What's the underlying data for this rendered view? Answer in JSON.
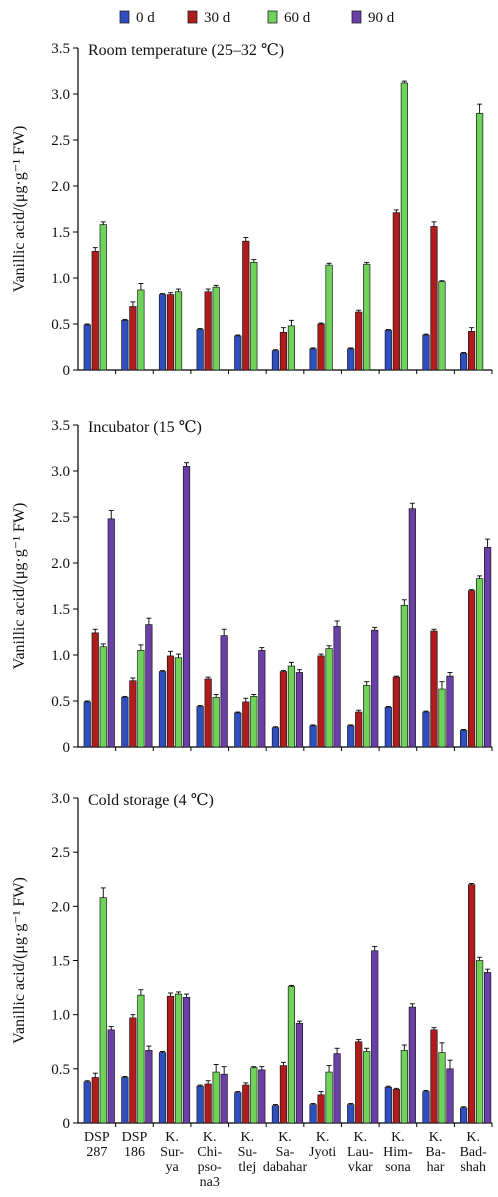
{
  "legend": [
    {
      "label": "0 d",
      "color": "#2f4fc0"
    },
    {
      "label": "30 d",
      "color": "#b01c1c"
    },
    {
      "label": "60 d",
      "color": "#6fd35a"
    },
    {
      "label": "90 d",
      "color": "#6a3fa8"
    }
  ],
  "categories": [
    [
      "DSP",
      "287"
    ],
    [
      "DSP",
      "186"
    ],
    [
      "K.",
      "Sur-",
      "ya"
    ],
    [
      "K.",
      "Chi-",
      "pso-",
      "na3"
    ],
    [
      "K.",
      "Su-",
      "tlej"
    ],
    [
      "K.",
      "Sa-",
      "dabahar"
    ],
    [
      "K.",
      "Jyoti"
    ],
    [
      "K.",
      "Lau-",
      "vkar"
    ],
    [
      "K.",
      "Him-",
      "sona"
    ],
    [
      "K.",
      "Ba-",
      "har"
    ],
    [
      "K.",
      "Bad-",
      "shah"
    ]
  ],
  "chart_data": [
    {
      "type": "bar",
      "title": "Room temperature (25–32 ℃)",
      "ylabel": "Vanillic acid/(μg·g⁻¹ FW)",
      "ylim": [
        0,
        3.5
      ],
      "yticks": [
        "0",
        "0.5",
        "1.0",
        "1.5",
        "2.0",
        "2.5",
        "3.0",
        "3.5"
      ],
      "series": [
        {
          "name": "0 d",
          "values": [
            0.49,
            0.54,
            0.82,
            0.44,
            0.37,
            0.21,
            0.23,
            0.23,
            0.43,
            0.38,
            0.18
          ],
          "errors": [
            0.01,
            0.01,
            0.01,
            0.01,
            0.01,
            0.01,
            0.01,
            0.01,
            0.01,
            0.01,
            0.01
          ]
        },
        {
          "name": "30 d",
          "values": [
            1.29,
            0.69,
            0.82,
            0.85,
            1.4,
            0.41,
            0.5,
            0.63,
            1.71,
            1.56,
            0.42
          ],
          "errors": [
            0.04,
            0.05,
            0.02,
            0.03,
            0.04,
            0.05,
            0.01,
            0.02,
            0.03,
            0.05,
            0.04
          ]
        },
        {
          "name": "60 d",
          "values": [
            1.58,
            0.87,
            0.85,
            0.9,
            1.17,
            0.48,
            1.14,
            1.15,
            3.12,
            0.96,
            2.79
          ],
          "errors": [
            0.03,
            0.07,
            0.03,
            0.02,
            0.03,
            0.06,
            0.02,
            0.02,
            0.02,
            0.01,
            0.1
          ]
        },
        {
          "name": "90 d",
          "values": [
            null,
            null,
            null,
            null,
            null,
            null,
            null,
            null,
            null,
            null,
            null
          ]
        }
      ]
    },
    {
      "type": "bar",
      "title": "Incubator (15 ℃)",
      "ylabel": "Vanillic acid/(μg·g⁻¹ FW)",
      "ylim": [
        0,
        3.5
      ],
      "yticks": [
        "0",
        "0.5",
        "1.0",
        "1.5",
        "2.0",
        "2.5",
        "3.0",
        "3.5"
      ],
      "series": [
        {
          "name": "0 d",
          "values": [
            0.49,
            0.54,
            0.82,
            0.44,
            0.37,
            0.21,
            0.23,
            0.23,
            0.43,
            0.38,
            0.18
          ],
          "errors": [
            0.01,
            0.01,
            0.01,
            0.01,
            0.01,
            0.01,
            0.01,
            0.01,
            0.01,
            0.01,
            0.01
          ]
        },
        {
          "name": "30 d",
          "values": [
            1.24,
            0.72,
            0.99,
            0.74,
            0.49,
            0.82,
            0.99,
            0.38,
            0.76,
            1.26,
            1.7
          ],
          "errors": [
            0.04,
            0.03,
            0.05,
            0.02,
            0.04,
            0.01,
            0.02,
            0.02,
            0.01,
            0.02,
            0.01
          ]
        },
        {
          "name": "60 d",
          "values": [
            1.09,
            1.05,
            0.97,
            0.54,
            0.55,
            0.88,
            1.07,
            0.67,
            1.54,
            0.63,
            1.83
          ],
          "errors": [
            0.03,
            0.06,
            0.04,
            0.03,
            0.02,
            0.04,
            0.03,
            0.04,
            0.06,
            0.08,
            0.03
          ]
        },
        {
          "name": "90 d",
          "values": [
            2.48,
            1.33,
            3.05,
            1.21,
            1.05,
            0.81,
            1.31,
            1.27,
            2.59,
            0.77,
            2.17
          ],
          "errors": [
            0.09,
            0.07,
            0.04,
            0.07,
            0.03,
            0.03,
            0.06,
            0.03,
            0.06,
            0.04,
            0.09
          ]
        }
      ]
    },
    {
      "type": "bar",
      "title": "Cold storage (4 ℃)",
      "ylabel": "Vanillic acid/(μg·g⁻¹ FW)",
      "ylim": [
        0,
        3.0
      ],
      "yticks": [
        "0",
        "0.5",
        "1.0",
        "1.5",
        "2.0",
        "2.5",
        "3.0"
      ],
      "series": [
        {
          "name": "0 d",
          "values": [
            0.38,
            0.42,
            0.65,
            0.34,
            0.28,
            0.16,
            0.17,
            0.17,
            0.33,
            0.29,
            0.14
          ],
          "errors": [
            0.01,
            0.01,
            0.01,
            0.01,
            0.01,
            0.01,
            0.01,
            0.01,
            0.01,
            0.01,
            0.01
          ]
        },
        {
          "name": "30 d",
          "values": [
            0.42,
            0.97,
            1.17,
            0.36,
            0.35,
            0.53,
            0.26,
            0.75,
            0.31,
            0.86,
            2.2
          ],
          "errors": [
            0.04,
            0.03,
            0.03,
            0.03,
            0.02,
            0.03,
            0.03,
            0.02,
            0.01,
            0.02,
            0.01
          ]
        },
        {
          "name": "60 d",
          "values": [
            2.08,
            1.18,
            1.19,
            0.47,
            0.51,
            1.26,
            0.47,
            0.66,
            0.67,
            0.65,
            1.5
          ],
          "errors": [
            0.09,
            0.05,
            0.02,
            0.07,
            0.01,
            0.01,
            0.06,
            0.03,
            0.05,
            0.09,
            0.03
          ]
        },
        {
          "name": "90 d",
          "values": [
            0.86,
            0.67,
            1.16,
            0.45,
            0.49,
            0.92,
            0.64,
            1.59,
            1.07,
            0.5,
            1.39
          ],
          "errors": [
            0.03,
            0.04,
            0.03,
            0.07,
            0.03,
            0.02,
            0.05,
            0.04,
            0.03,
            0.08,
            0.03
          ]
        }
      ]
    }
  ]
}
